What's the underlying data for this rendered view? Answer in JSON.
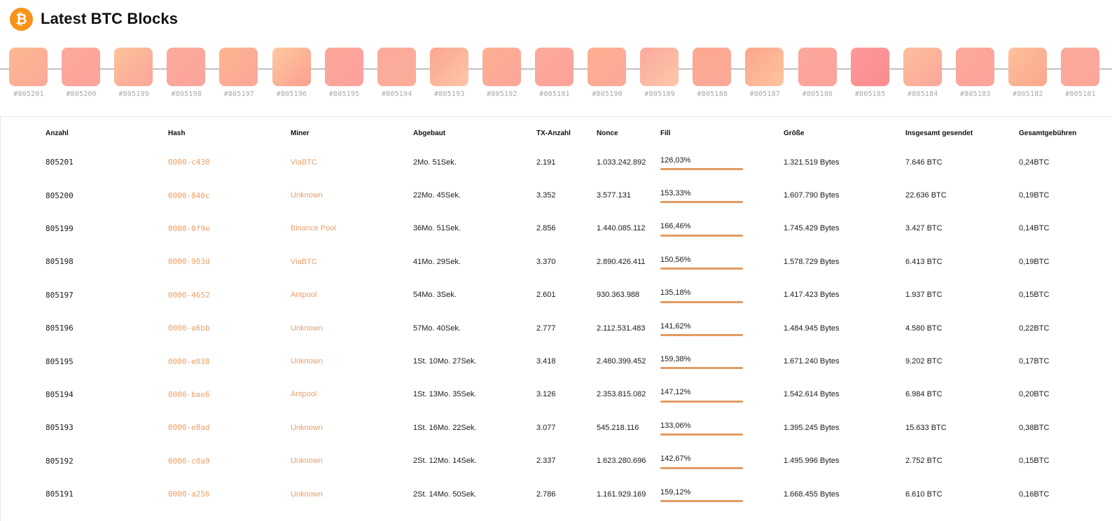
{
  "header": {
    "title": "Latest BTC Blocks",
    "logo_glyph": "₿",
    "logo_icon": "bitcoin-icon",
    "accent": "#f7931a"
  },
  "strip": {
    "blocks": [
      {
        "label": "#805201",
        "c1": "#fdb98f",
        "c2": "#fca89a"
      },
      {
        "label": "#805200",
        "c1": "#fcaa9a",
        "c2": "#fca29a"
      },
      {
        "label": "#805199",
        "c1": "#fdc29a",
        "c2": "#fca69a"
      },
      {
        "label": "#805198",
        "c1": "#fcaa9a",
        "c2": "#fca49c"
      },
      {
        "label": "#805197",
        "c1": "#fdb58e",
        "c2": "#fca69a"
      },
      {
        "label": "#805196",
        "c1": "#fdc8a0",
        "c2": "#fca08e"
      },
      {
        "label": "#805195",
        "c1": "#fca89a",
        "c2": "#fca09c"
      },
      {
        "label": "#805194",
        "c1": "#fcaa9c",
        "c2": "#fcae98"
      },
      {
        "label": "#805193",
        "c1": "#fca68c",
        "c2": "#fdc6aa"
      },
      {
        "label": "#805192",
        "c1": "#fdaf92",
        "c2": "#fca69a"
      },
      {
        "label": "#805191",
        "c1": "#fcaa9a",
        "c2": "#fca29a"
      },
      {
        "label": "#805190",
        "c1": "#fdb090",
        "c2": "#fca89a"
      },
      {
        "label": "#805189",
        "c1": "#fca89a",
        "c2": "#fdc8aa"
      },
      {
        "label": "#805188",
        "c1": "#fda88e",
        "c2": "#fcaa9a"
      },
      {
        "label": "#805187",
        "c1": "#fca68c",
        "c2": "#fdc4a0"
      },
      {
        "label": "#805186",
        "c1": "#fca89c",
        "c2": "#fca29a"
      },
      {
        "label": "#805185",
        "c1": "#fc9a98",
        "c2": "#fc8a8e"
      },
      {
        "label": "#805184",
        "c1": "#fdc09c",
        "c2": "#fca69a"
      },
      {
        "label": "#805183",
        "c1": "#fcaa9a",
        "c2": "#fca29a"
      },
      {
        "label": "#805182",
        "c1": "#fdc29a",
        "c2": "#fca48e"
      },
      {
        "label": "#805181",
        "c1": "#fcaa9a",
        "c2": "#fca69a"
      }
    ]
  },
  "table": {
    "headers": [
      "Anzahl",
      "Hash",
      "Miner",
      "Abgebaut",
      "TX-Anzahl",
      "Nonce",
      "Fill",
      "Größe",
      "Insgesamt gesendet",
      "Gesamtgebühren"
    ],
    "rows": [
      {
        "height": "805201",
        "hash": "0000-c430",
        "miner": "ViaBTC",
        "mined": "2Mo. 51Sek.",
        "tx": "2.191",
        "nonce": "1.033.242.892",
        "fill": "126,03%",
        "fill_value": 1.2603,
        "size": "1.321.519 Bytes",
        "sent": "7.646 BTC",
        "fees": "0,24BTC"
      },
      {
        "height": "805200",
        "hash": "0000-840c",
        "miner": "Unknown",
        "mined": "22Mo. 45Sek.",
        "tx": "3.352",
        "nonce": "3.577.131",
        "fill": "153,33%",
        "fill_value": 1.5333,
        "size": "1.607.790 Bytes",
        "sent": "22.636 BTC",
        "fees": "0,19BTC"
      },
      {
        "height": "805199",
        "hash": "0000-0f9e",
        "miner": "Binance Pool",
        "mined": "36Mo. 51Sek.",
        "tx": "2.856",
        "nonce": "1.440.085.112",
        "fill": "166,46%",
        "fill_value": 1.6646,
        "size": "1.745.429 Bytes",
        "sent": "3.427 BTC",
        "fees": "0,14BTC"
      },
      {
        "height": "805198",
        "hash": "0000-903d",
        "miner": "ViaBTC",
        "mined": "41Mo. 29Sek.",
        "tx": "3.370",
        "nonce": "2.890.426.411",
        "fill": "150,56%",
        "fill_value": 1.5056,
        "size": "1.578.729 Bytes",
        "sent": "6.413 BTC",
        "fees": "0,19BTC"
      },
      {
        "height": "805197",
        "hash": "0000-4652",
        "miner": "Antpool",
        "mined": "54Mo. 3Sek.",
        "tx": "2.601",
        "nonce": "930.363.988",
        "fill": "135,18%",
        "fill_value": 1.3518,
        "size": "1.417.423 Bytes",
        "sent": "1.937 BTC",
        "fees": "0,15BTC"
      },
      {
        "height": "805196",
        "hash": "0000-a6bb",
        "miner": "Unknown",
        "mined": "57Mo. 40Sek.",
        "tx": "2.777",
        "nonce": "2.112.531.483",
        "fill": "141,62%",
        "fill_value": 1.4162,
        "size": "1.484.945 Bytes",
        "sent": "4.580 BTC",
        "fees": "0,22BTC"
      },
      {
        "height": "805195",
        "hash": "0000-e038",
        "miner": "Unknown",
        "mined": "1St. 10Mo. 27Sek.",
        "tx": "3.418",
        "nonce": "2.480.399.452",
        "fill": "159,38%",
        "fill_value": 1.5938,
        "size": "1.671.240 Bytes",
        "sent": "9.202 BTC",
        "fees": "0,17BTC"
      },
      {
        "height": "805194",
        "hash": "0000-bae6",
        "miner": "Antpool",
        "mined": "1St. 13Mo. 35Sek.",
        "tx": "3.126",
        "nonce": "2.353.815.082",
        "fill": "147,12%",
        "fill_value": 1.4712,
        "size": "1.542.614 Bytes",
        "sent": "6.984 BTC",
        "fees": "0,20BTC"
      },
      {
        "height": "805193",
        "hash": "0000-e8ad",
        "miner": "Unknown",
        "mined": "1St. 16Mo. 22Sek.",
        "tx": "3.077",
        "nonce": "545.218.116",
        "fill": "133,06%",
        "fill_value": 1.3306,
        "size": "1.395.245 Bytes",
        "sent": "15.633 BTC",
        "fees": "0,38BTC"
      },
      {
        "height": "805192",
        "hash": "0000-c0a9",
        "miner": "Unknown",
        "mined": "2St. 12Mo. 14Sek.",
        "tx": "2.337",
        "nonce": "1.623.280.696",
        "fill": "142,67%",
        "fill_value": 1.4267,
        "size": "1.495.996 Bytes",
        "sent": "2.752 BTC",
        "fees": "0,15BTC"
      },
      {
        "height": "805191",
        "hash": "0000-a256",
        "miner": "Unknown",
        "mined": "2St. 14Mo. 50Sek.",
        "tx": "2.786",
        "nonce": "1.161.929.169",
        "fill": "159,12%",
        "fill_value": 1.5912,
        "size": "1.668.455 Bytes",
        "sent": "6.610 BTC",
        "fees": "0,16BTC"
      }
    ]
  }
}
